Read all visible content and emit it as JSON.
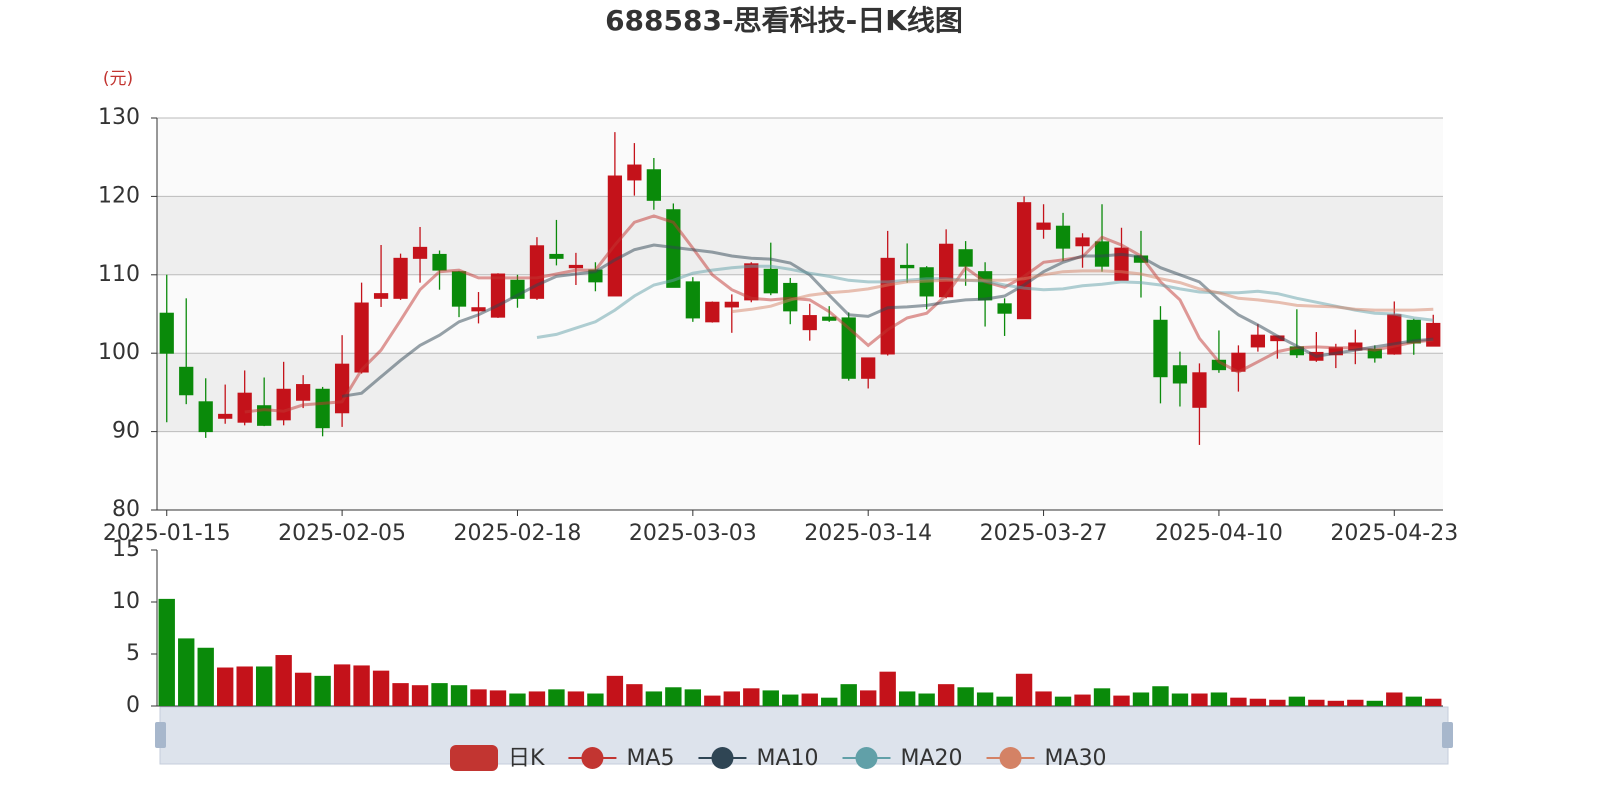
{
  "chart_data": {
    "type": "candlestick",
    "title": "688583-思看科技-日K线图",
    "y_unit_label": "(元)",
    "categories": [
      "2025-01-15",
      null,
      null,
      null,
      null,
      null,
      null,
      null,
      null,
      "2025-02-05",
      null,
      null,
      null,
      null,
      null,
      null,
      null,
      null,
      "2025-02-18",
      null,
      null,
      null,
      null,
      null,
      null,
      null,
      null,
      "2025-03-03",
      null,
      null,
      null,
      null,
      null,
      null,
      null,
      null,
      "2025-03-14",
      null,
      null,
      null,
      null,
      null,
      null,
      null,
      null,
      "2025-03-27",
      null,
      null,
      null,
      null,
      null,
      null,
      null,
      null,
      "2025-04-10",
      null,
      null,
      null,
      null,
      null,
      null,
      null,
      null,
      "2025-04-23",
      null,
      null
    ],
    "ylim": [
      80,
      130
    ],
    "yticks": [
      80,
      90,
      100,
      110,
      120,
      130
    ],
    "grid": true,
    "split_area": true,
    "up_color": "#c4121a",
    "down_color": "#0a8a0a",
    "series": [
      {
        "name": "日K",
        "color": "#c23531",
        "open": [
          105.1,
          98.2,
          93.8,
          91.7,
          91.2,
          93.3,
          91.5,
          94.0,
          95.4,
          92.4,
          97.6,
          107.0,
          107.0,
          112.1,
          112.6,
          110.4,
          105.4,
          104.6,
          109.3,
          107.0,
          112.6,
          110.9,
          110.6,
          107.3,
          122.1,
          123.4,
          118.3,
          109.1,
          104.0,
          105.9,
          106.8,
          110.7,
          108.9,
          103.0,
          104.6,
          104.5,
          96.8,
          99.9,
          111.2,
          110.9,
          107.2,
          113.2,
          110.4,
          106.3,
          104.4,
          115.8,
          116.2,
          113.7,
          114.2,
          109.3,
          112.4,
          104.2,
          98.4,
          93.1,
          99.1,
          97.7,
          100.8,
          101.6,
          100.8,
          99.1,
          99.8,
          100.4,
          100.5,
          99.9,
          104.2,
          100.9
        ],
        "close": [
          100.0,
          94.7,
          90.0,
          92.2,
          94.9,
          90.8,
          95.4,
          96.0,
          90.5,
          98.6,
          106.4,
          107.6,
          112.1,
          113.5,
          110.6,
          106.0,
          105.8,
          110.1,
          107.0,
          113.7,
          112.1,
          111.2,
          109.1,
          122.6,
          124.0,
          119.5,
          108.4,
          104.5,
          106.5,
          106.5,
          111.4,
          107.7,
          105.4,
          104.8,
          104.2,
          96.8,
          99.4,
          112.1,
          110.9,
          107.3,
          113.9,
          111.1,
          106.8,
          105.1,
          119.2,
          116.6,
          113.4,
          114.7,
          111.1,
          113.4,
          111.6,
          97.0,
          96.2,
          97.5,
          97.9,
          100.0,
          102.3,
          102.2,
          99.8,
          100.1,
          100.7,
          101.3,
          99.4,
          104.9,
          101.3,
          103.8
        ],
        "high": [
          110.0,
          107.0,
          96.8,
          96.0,
          97.8,
          96.9,
          98.9,
          97.2,
          95.7,
          102.3,
          109.0,
          113.8,
          112.7,
          116.1,
          113.1,
          110.5,
          107.8,
          110.2,
          110.0,
          114.8,
          117.0,
          112.8,
          111.6,
          128.2,
          126.8,
          124.9,
          119.1,
          109.7,
          106.6,
          107.5,
          111.6,
          114.1,
          109.6,
          106.3,
          106.0,
          105.2,
          99.4,
          115.6,
          114.0,
          111.1,
          115.8,
          114.3,
          111.6,
          107.0,
          120.0,
          119.0,
          117.9,
          115.3,
          119.0,
          116.0,
          115.6,
          106.0,
          100.2,
          98.7,
          102.9,
          101.0,
          103.7,
          102.2,
          105.6,
          102.7,
          101.2,
          103.0,
          101.0,
          106.6,
          104.4,
          104.9
        ],
        "low": [
          91.2,
          93.5,
          89.2,
          91.0,
          90.8,
          90.7,
          90.8,
          93.0,
          89.4,
          90.6,
          97.4,
          105.9,
          106.8,
          109.0,
          108.1,
          104.6,
          103.8,
          104.5,
          105.8,
          106.8,
          111.2,
          108.7,
          107.9,
          107.3,
          120.1,
          118.3,
          108.4,
          104.0,
          103.9,
          102.6,
          106.5,
          107.4,
          103.7,
          101.6,
          104.0,
          96.5,
          95.5,
          99.7,
          109.0,
          105.6,
          107.0,
          108.6,
          103.4,
          102.2,
          104.4,
          114.6,
          111.8,
          110.9,
          110.4,
          109.3,
          107.1,
          93.6,
          93.2,
          88.3,
          97.5,
          95.1,
          100.2,
          99.3,
          99.4,
          98.9,
          98.1,
          98.6,
          98.8,
          99.8,
          99.8,
          100.9
        ]
      },
      {
        "name": "MA5",
        "color": "#c23531",
        "values": [
          null,
          null,
          null,
          null,
          92.5,
          92.8,
          92.6,
          93.4,
          93.6,
          93.8,
          97.9,
          100.4,
          104.2,
          108.1,
          110.4,
          110.6,
          109.6,
          109.6,
          109.6,
          109.6,
          110.1,
          110.6,
          110.6,
          113.8,
          116.7,
          117.5,
          116.7,
          113.4,
          110.0,
          108.1,
          107.0,
          106.8,
          107.0,
          106.8,
          105.3,
          103.2,
          101.0,
          103.0,
          104.5,
          105.1,
          107.4,
          110.9,
          109.1,
          108.4,
          109.8,
          111.6,
          111.9,
          112.3,
          114.8,
          113.8,
          112.4,
          109.1,
          106.8,
          101.9,
          98.9,
          97.6,
          98.9,
          100.2,
          100.7,
          100.8,
          100.7,
          100.7,
          100.4,
          100.9,
          101.4,
          101.7
        ]
      },
      {
        "name": "MA10",
        "color": "#2f4554",
        "values": [
          null,
          null,
          null,
          null,
          null,
          null,
          null,
          null,
          null,
          94.5,
          94.9,
          97.0,
          99.1,
          101.0,
          102.3,
          104.0,
          104.9,
          106.1,
          107.4,
          108.7,
          109.8,
          110.1,
          110.4,
          111.9,
          113.2,
          113.8,
          113.5,
          113.2,
          112.9,
          112.4,
          112.1,
          112.0,
          111.5,
          110.0,
          107.4,
          104.9,
          104.7,
          105.8,
          105.9,
          106.1,
          106.5,
          106.8,
          106.9,
          107.3,
          108.7,
          110.4,
          111.6,
          112.4,
          112.4,
          112.6,
          112.3,
          110.9,
          110.0,
          109.1,
          106.8,
          104.9,
          103.6,
          102.2,
          100.9,
          99.6,
          100.0,
          100.4,
          100.8,
          101.2,
          101.6,
          101.8
        ]
      },
      {
        "name": "MA20",
        "color": "#61a0a8",
        "values": [
          null,
          null,
          null,
          null,
          null,
          null,
          null,
          null,
          null,
          null,
          null,
          null,
          null,
          null,
          null,
          null,
          null,
          null,
          null,
          102.0,
          102.4,
          103.2,
          104.0,
          105.5,
          107.3,
          108.7,
          109.3,
          110.2,
          110.6,
          110.9,
          111.1,
          111.1,
          110.7,
          110.2,
          109.8,
          109.3,
          109.1,
          109.1,
          109.3,
          109.5,
          109.5,
          109.3,
          109.2,
          108.7,
          108.3,
          108.1,
          108.2,
          108.6,
          108.8,
          109.1,
          109.0,
          108.7,
          108.2,
          107.8,
          107.7,
          107.7,
          107.9,
          107.6,
          107.0,
          106.5,
          106.0,
          105.5,
          105.1,
          105.0,
          104.5,
          104.2
        ]
      },
      {
        "name": "MA30",
        "color": "#d48265",
        "values": [
          null,
          null,
          null,
          null,
          null,
          null,
          null,
          null,
          null,
          null,
          null,
          null,
          null,
          null,
          null,
          null,
          null,
          null,
          null,
          null,
          null,
          null,
          null,
          null,
          null,
          null,
          null,
          null,
          null,
          105.3,
          105.6,
          106.0,
          106.8,
          107.4,
          107.7,
          107.9,
          108.2,
          108.7,
          109.1,
          109.2,
          109.3,
          109.3,
          109.3,
          109.3,
          109.5,
          110.0,
          110.4,
          110.5,
          110.5,
          110.4,
          110.1,
          109.5,
          109.0,
          108.2,
          107.7,
          107.0,
          106.8,
          106.5,
          106.1,
          106.0,
          105.9,
          105.6,
          105.5,
          105.5,
          105.5,
          105.6
        ]
      }
    ],
    "volume": {
      "values": [
        10.3,
        6.5,
        5.6,
        3.7,
        3.8,
        3.8,
        4.9,
        3.2,
        2.9,
        4.0,
        3.9,
        3.4,
        2.2,
        2.0,
        2.2,
        2.0,
        1.6,
        1.5,
        1.2,
        1.4,
        1.6,
        1.4,
        1.2,
        2.9,
        2.1,
        1.4,
        1.8,
        1.6,
        1.0,
        1.4,
        1.7,
        1.5,
        1.1,
        1.2,
        0.8,
        2.1,
        1.5,
        3.3,
        1.4,
        1.2,
        2.1,
        1.8,
        1.3,
        0.9,
        3.1,
        1.4,
        0.9,
        1.1,
        1.7,
        1.0,
        1.3,
        1.9,
        1.2,
        1.2,
        1.3,
        0.8,
        0.7,
        0.6,
        0.9,
        0.6,
        0.5,
        0.6,
        0.5,
        1.3,
        0.9,
        0.7
      ],
      "ylim": [
        0,
        15
      ],
      "yticks": [
        0,
        5,
        10,
        15
      ]
    }
  }
}
